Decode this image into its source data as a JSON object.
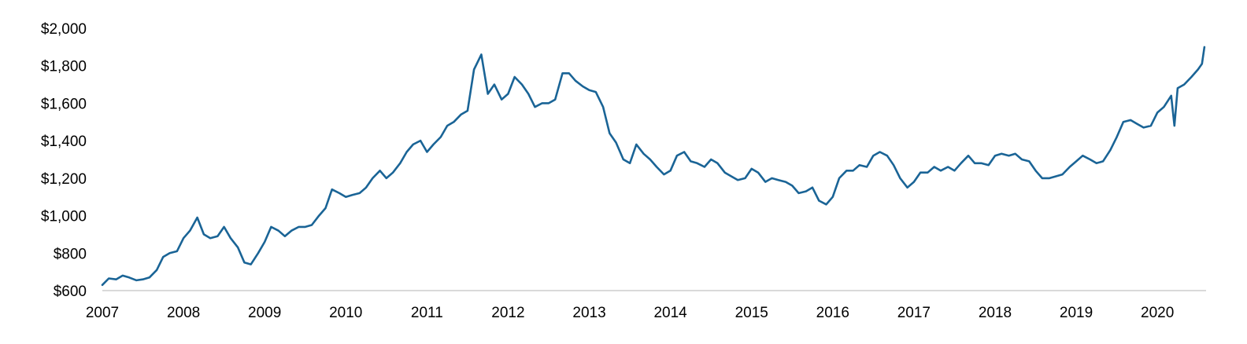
{
  "chart_data": {
    "type": "line",
    "title": "",
    "xlabel": "",
    "ylabel": "",
    "xlim": [
      2007.0,
      2020.6
    ],
    "ylim": [
      600,
      2000
    ],
    "x_ticks": [
      2007,
      2008,
      2009,
      2010,
      2011,
      2012,
      2013,
      2014,
      2015,
      2016,
      2017,
      2018,
      2019,
      2020
    ],
    "x_tick_labels": [
      "2007",
      "2008",
      "2009",
      "2010",
      "2011",
      "2012",
      "2013",
      "2014",
      "2015",
      "2016",
      "2017",
      "2018",
      "2019",
      "2020"
    ],
    "y_ticks": [
      600,
      800,
      1000,
      1200,
      1400,
      1600,
      1800,
      2000
    ],
    "y_tick_labels": [
      "$600",
      "$800",
      "$1,000",
      "$1,200",
      "$1,400",
      "$1,600",
      "$1,800",
      "$2,000"
    ],
    "grid": false,
    "legend": "none",
    "line_color": "#1a6496",
    "axis_color": "#d9d9d9",
    "series": [
      {
        "x": [
          2007.0,
          2007.08,
          2007.17,
          2007.25,
          2007.33,
          2007.42,
          2007.5,
          2007.58,
          2007.67,
          2007.75,
          2007.83,
          2007.92,
          2008.0,
          2008.08,
          2008.17,
          2008.25,
          2008.33,
          2008.42,
          2008.5,
          2008.58,
          2008.67,
          2008.75,
          2008.83,
          2008.92,
          2009.0,
          2009.08,
          2009.17,
          2009.25,
          2009.33,
          2009.42,
          2009.5,
          2009.58,
          2009.67,
          2009.75,
          2009.83,
          2009.92,
          2010.0,
          2010.08,
          2010.17,
          2010.25,
          2010.33,
          2010.42,
          2010.5,
          2010.58,
          2010.67,
          2010.75,
          2010.83,
          2010.92,
          2011.0,
          2011.08,
          2011.17,
          2011.25,
          2011.33,
          2011.42,
          2011.5,
          2011.58,
          2011.67,
          2011.75,
          2011.83,
          2011.92,
          2012.0,
          2012.08,
          2012.17,
          2012.25,
          2012.33,
          2012.42,
          2012.5,
          2012.58,
          2012.67,
          2012.75,
          2012.83,
          2012.92,
          2013.0,
          2013.08,
          2013.17,
          2013.25,
          2013.33,
          2013.42,
          2013.5,
          2013.58,
          2013.67,
          2013.75,
          2013.83,
          2013.92,
          2014.0,
          2014.08,
          2014.17,
          2014.25,
          2014.33,
          2014.42,
          2014.5,
          2014.58,
          2014.67,
          2014.75,
          2014.83,
          2014.92,
          2015.0,
          2015.08,
          2015.17,
          2015.25,
          2015.33,
          2015.42,
          2015.5,
          2015.58,
          2015.67,
          2015.75,
          2015.83,
          2015.92,
          2016.0,
          2016.08,
          2016.17,
          2016.25,
          2016.33,
          2016.42,
          2016.5,
          2016.58,
          2016.67,
          2016.75,
          2016.83,
          2016.92,
          2017.0,
          2017.08,
          2017.17,
          2017.25,
          2017.33,
          2017.42,
          2017.5,
          2017.58,
          2017.67,
          2017.75,
          2017.83,
          2017.92,
          2018.0,
          2018.08,
          2018.17,
          2018.25,
          2018.33,
          2018.42,
          2018.5,
          2018.58,
          2018.67,
          2018.75,
          2018.83,
          2018.92,
          2019.0,
          2019.08,
          2019.17,
          2019.25,
          2019.33,
          2019.42,
          2019.5,
          2019.58,
          2019.67,
          2019.75,
          2019.83,
          2019.92,
          2020.0,
          2020.08,
          2020.17,
          2020.21,
          2020.25,
          2020.33,
          2020.42,
          2020.5,
          2020.55,
          2020.58
        ],
        "values": [
          630,
          665,
          660,
          680,
          670,
          655,
          660,
          670,
          710,
          780,
          800,
          810,
          880,
          920,
          990,
          900,
          880,
          890,
          940,
          880,
          830,
          750,
          740,
          800,
          860,
          940,
          920,
          890,
          920,
          940,
          940,
          950,
          1000,
          1040,
          1140,
          1120,
          1100,
          1110,
          1120,
          1150,
          1200,
          1240,
          1200,
          1230,
          1280,
          1340,
          1380,
          1400,
          1340,
          1380,
          1420,
          1480,
          1500,
          1540,
          1560,
          1780,
          1860,
          1650,
          1700,
          1620,
          1650,
          1740,
          1700,
          1650,
          1580,
          1600,
          1600,
          1620,
          1760,
          1760,
          1720,
          1690,
          1670,
          1660,
          1580,
          1440,
          1390,
          1300,
          1280,
          1380,
          1330,
          1300,
          1260,
          1220,
          1240,
          1320,
          1340,
          1290,
          1280,
          1260,
          1300,
          1280,
          1230,
          1210,
          1190,
          1200,
          1250,
          1230,
          1180,
          1200,
          1190,
          1180,
          1160,
          1120,
          1130,
          1150,
          1080,
          1060,
          1100,
          1200,
          1240,
          1240,
          1270,
          1260,
          1320,
          1340,
          1320,
          1270,
          1200,
          1150,
          1180,
          1230,
          1230,
          1260,
          1240,
          1260,
          1240,
          1280,
          1320,
          1280,
          1280,
          1270,
          1320,
          1330,
          1320,
          1330,
          1300,
          1290,
          1240,
          1200,
          1200,
          1210,
          1220,
          1260,
          1290,
          1320,
          1300,
          1280,
          1290,
          1350,
          1420,
          1500,
          1510,
          1490,
          1470,
          1480,
          1550,
          1580,
          1640,
          1480,
          1680,
          1700,
          1740,
          1780,
          1810,
          1900
        ]
      }
    ]
  }
}
